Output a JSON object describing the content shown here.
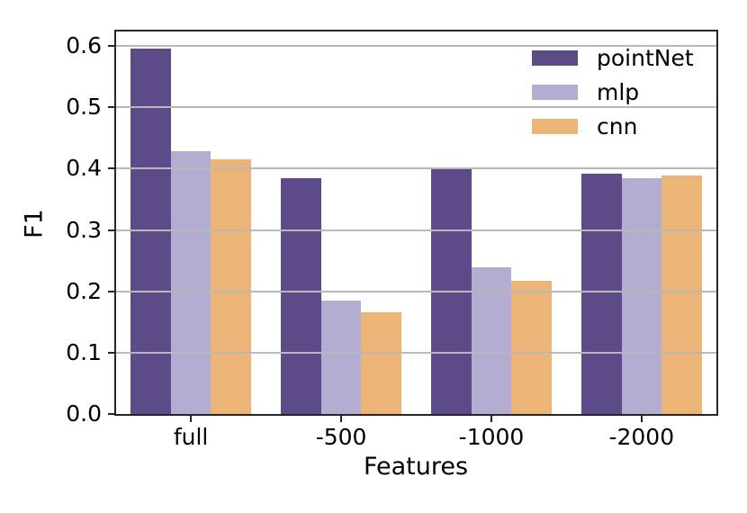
{
  "figure": {
    "background": "#ffffff",
    "axis_color": "#262626",
    "grid_color": "#b8b8b8",
    "text_color": "#000000"
  },
  "chart_data": {
    "type": "bar",
    "title": "",
    "xlabel": "Features",
    "ylabel": "F1",
    "categories": [
      "full",
      "-500",
      "-1000",
      "-2000"
    ],
    "series": [
      {
        "name": "pointNet",
        "color": "#5d4a88",
        "values": [
          0.595,
          0.385,
          0.399,
          0.392
        ]
      },
      {
        "name": "mlp",
        "color": "#b3aed1",
        "values": [
          0.428,
          0.185,
          0.239,
          0.384
        ]
      },
      {
        "name": "cnn",
        "color": "#ecb577",
        "values": [
          0.415,
          0.166,
          0.217,
          0.389
        ]
      }
    ],
    "ylim": [
      0,
      0.623
    ],
    "yticks": [
      "0.0",
      "0.1",
      "0.2",
      "0.3",
      "0.4",
      "0.5",
      "0.6"
    ],
    "grid": true,
    "grid_on_top_of_bars": true,
    "legend_position": "upper right",
    "legend_frame": false,
    "bar_group_width_fraction": 0.8
  }
}
